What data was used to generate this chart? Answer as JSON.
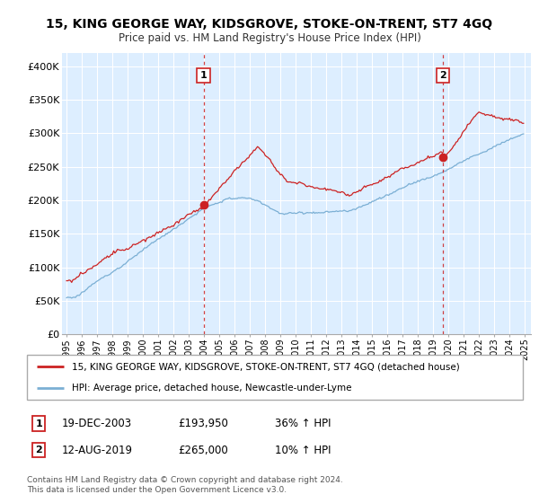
{
  "title": "15, KING GEORGE WAY, KIDSGROVE, STOKE-ON-TRENT, ST7 4GQ",
  "subtitle": "Price paid vs. HM Land Registry's House Price Index (HPI)",
  "ylim": [
    0,
    420000
  ],
  "yticks": [
    0,
    50000,
    100000,
    150000,
    200000,
    250000,
    300000,
    350000,
    400000
  ],
  "ytick_labels": [
    "£0",
    "£50K",
    "£100K",
    "£150K",
    "£200K",
    "£250K",
    "£300K",
    "£350K",
    "£400K"
  ],
  "hpi_color": "#7bafd4",
  "price_color": "#cc2222",
  "vline_color": "#cc2222",
  "plot_bg_color": "#ddeeff",
  "grid_color": "#ffffff",
  "marker1_date": 2003.97,
  "marker1_price": 193950,
  "marker1_label": "1",
  "marker2_date": 2019.62,
  "marker2_price": 265000,
  "marker2_label": "2",
  "legend_line1": "15, KING GEORGE WAY, KIDSGROVE, STOKE-ON-TRENT, ST7 4GQ (detached house)",
  "legend_line2": "HPI: Average price, detached house, Newcastle-under-Lyme",
  "table_row1": [
    "1",
    "19-DEC-2003",
    "£193,950",
    "36% ↑ HPI"
  ],
  "table_row2": [
    "2",
    "12-AUG-2019",
    "£265,000",
    "10% ↑ HPI"
  ],
  "footnote1": "Contains HM Land Registry data © Crown copyright and database right 2024.",
  "footnote2": "This data is licensed under the Open Government Licence v3.0.",
  "background_color": "#ffffff"
}
